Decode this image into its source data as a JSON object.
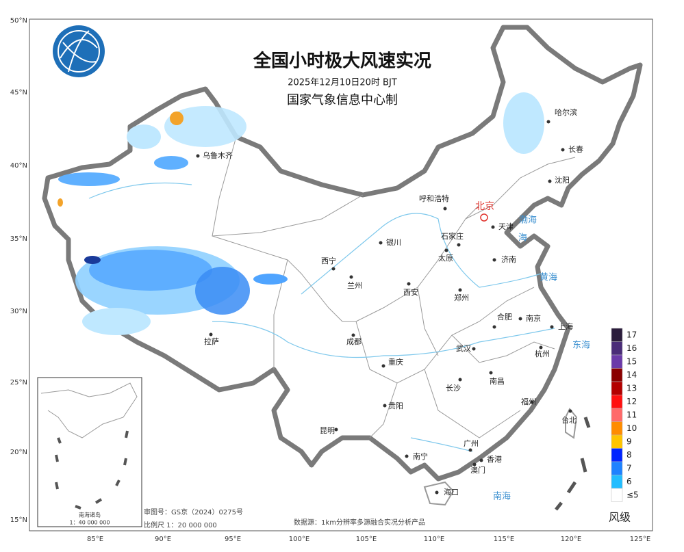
{
  "title": "全国小时极大风速实况",
  "subtitle": "2025年12月10日20时 BJT",
  "producer": "国家气象信息中心制",
  "capital": "北京",
  "latitude_labels": [
    "50°N",
    "45°N",
    "40°N",
    "35°N",
    "30°N",
    "25°N",
    "20°N",
    "15°N"
  ],
  "longitude_labels": [
    "85°E",
    "90°E",
    "95°E",
    "100°E",
    "105°E",
    "110°E",
    "115°E",
    "120°E",
    "125°E"
  ],
  "cities": [
    "乌鲁木齐",
    "哈尔滨",
    "长春",
    "沈阳",
    "呼和浩特",
    "天津",
    "石家庄",
    "太原",
    "济南",
    "银川",
    "西宁",
    "兰州",
    "西安",
    "郑州",
    "合肥",
    "南京",
    "上海",
    "拉萨",
    "成都",
    "武汉",
    "杭州",
    "重庆",
    "南昌",
    "长沙",
    "贵阳",
    "福州",
    "昆明",
    "台北",
    "广州",
    "香港",
    "南宁",
    "澳门",
    "海口"
  ],
  "seas": [
    "渤海",
    "黄海",
    "东海",
    "南海",
    "海"
  ],
  "legend": {
    "title": "风级",
    "items": [
      {
        "label": "17",
        "color": "#2b1d3c"
      },
      {
        "label": "16",
        "color": "#4a2c78"
      },
      {
        "label": "15",
        "color": "#6b3aa8"
      },
      {
        "label": "14",
        "color": "#8a0000"
      },
      {
        "label": "13",
        "color": "#b30000"
      },
      {
        "label": "12",
        "color": "#ff1010"
      },
      {
        "label": "11",
        "color": "#ff6a6a"
      },
      {
        "label": "10",
        "color": "#ff8c00"
      },
      {
        "label": "9",
        "color": "#ffc400"
      },
      {
        "label": "8",
        "color": "#0024ff"
      },
      {
        "label": "7",
        "color": "#1e82ff"
      },
      {
        "label": "6",
        "color": "#22bdff"
      },
      {
        "label": "≤5",
        "color": "#ffffff"
      }
    ]
  },
  "footer": {
    "approval": "审图号：GS京（2024）0275号",
    "scale": "比例尺 1：20 000 000",
    "source": "数据源：1km分辨率多源融合实况分析产品"
  },
  "inset": {
    "title": "南海诸岛",
    "scale": "1：40 000 000"
  }
}
